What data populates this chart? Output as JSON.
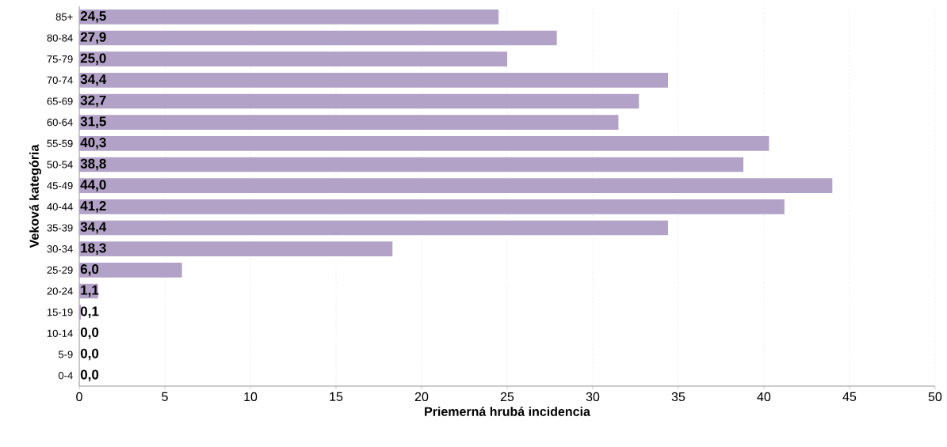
{
  "chart_data": {
    "type": "bar",
    "orientation": "horizontal",
    "xlabel": "Priemerná hrubá incidencia",
    "ylabel": "Veková kategória",
    "categories": [
      "85+",
      "80-84",
      "75-79",
      "70-74",
      "65-69",
      "60-64",
      "55-59",
      "50-54",
      "45-49",
      "40-44",
      "35-39",
      "30-34",
      "25-29",
      "20-24",
      "15-19",
      "10-14",
      "5-9",
      "0-4"
    ],
    "values": [
      24.5,
      27.9,
      25.0,
      34.4,
      32.7,
      31.5,
      40.3,
      38.8,
      44.0,
      41.2,
      34.4,
      18.3,
      6.0,
      1.1,
      0.1,
      0.0,
      0.0,
      0.0
    ],
    "value_labels": [
      "24,5",
      "27,9",
      "25,0",
      "34,4",
      "32,7",
      "31,5",
      "40,3",
      "38,8",
      "44,0",
      "41,2",
      "34,4",
      "18,3",
      "6,0",
      "1,1",
      "0,1",
      "0,0",
      "0,0",
      "0,0"
    ],
    "color": "#b3a2c7",
    "xlim": [
      0,
      50
    ],
    "xticks": [
      0,
      5,
      10,
      15,
      20,
      25,
      30,
      35,
      40,
      45,
      50
    ],
    "grid": "x"
  }
}
